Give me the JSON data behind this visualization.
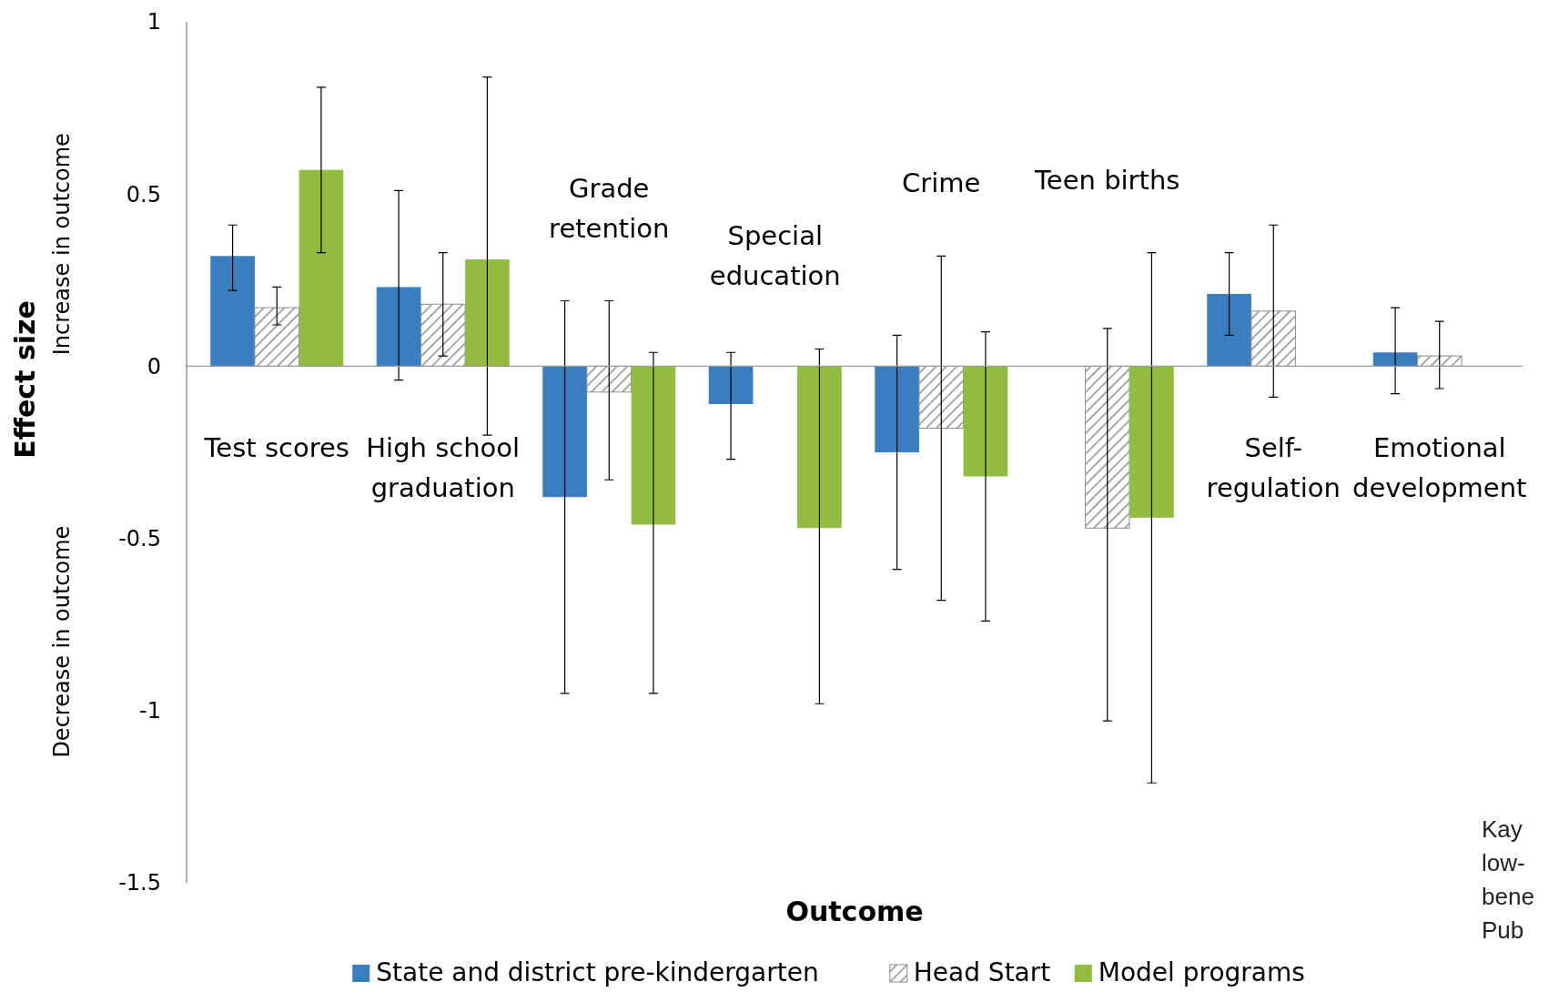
{
  "chart_data": {
    "type": "bar",
    "xlabel": "Outcome",
    "ylabel": "Effect size",
    "categories": [
      "Test scores",
      "High school graduation",
      "Grade retention",
      "Special education",
      "Crime",
      "Teen births",
      "Self-regulation",
      "Emotional development"
    ],
    "series": [
      {
        "name": "State and district pre-kindergarten",
        "color": "#3a7ebf",
        "values": [
          0.32,
          0.23,
          -0.38,
          -0.11,
          -0.25,
          null,
          0.21,
          0.04
        ],
        "errors": [
          [
            0.22,
            0.41
          ],
          [
            -0.04,
            0.51
          ],
          [
            -0.95,
            0.19
          ],
          [
            -0.27,
            0.04
          ],
          [
            -0.59,
            0.09
          ],
          null,
          [
            0.09,
            0.33
          ],
          [
            -0.08,
            0.17
          ]
        ]
      },
      {
        "name": "Head Start",
        "color": "#8c8c8c",
        "values": [
          0.17,
          0.18,
          -0.075,
          null,
          -0.18,
          -0.47,
          0.16,
          0.03
        ],
        "errors": [
          [
            0.12,
            0.23
          ],
          [
            0.03,
            0.33
          ],
          [
            -0.33,
            0.19
          ],
          null,
          [
            -0.68,
            0.32
          ],
          [
            -1.03,
            0.11
          ],
          [
            -0.09,
            0.41
          ],
          [
            -0.065,
            0.13
          ]
        ]
      },
      {
        "name": "Model programs",
        "color": "#92bb42",
        "values": [
          0.57,
          0.31,
          -0.46,
          -0.47,
          -0.32,
          -0.44,
          null,
          null
        ],
        "errors": [
          [
            0.33,
            0.81
          ],
          [
            -0.2,
            0.84
          ],
          [
            -0.95,
            0.04
          ],
          [
            -0.98,
            0.05
          ],
          [
            -0.74,
            0.1
          ],
          [
            -1.21,
            0.33
          ],
          null,
          null
        ]
      }
    ],
    "ylim": [
      -1.5,
      1
    ],
    "yticks": [
      1,
      0.5,
      0,
      -0.5,
      -1,
      -1.5
    ],
    "grid": false,
    "legend": "bottom",
    "annotations": [
      "Increase in outcome",
      "Decrease in outcome",
      "Kay\nlow-\nbene\nPub"
    ]
  }
}
